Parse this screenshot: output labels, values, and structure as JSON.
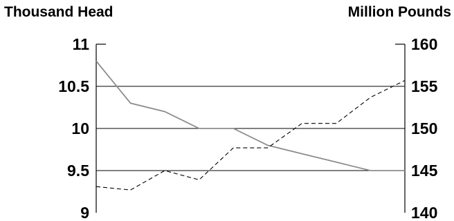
{
  "chart_data": {
    "type": "line",
    "left_axis_title": "Thousand Head",
    "right_axis_title": "Million Pounds",
    "x": [
      0,
      1,
      2,
      3,
      4,
      5,
      6,
      7,
      8,
      9
    ],
    "left_axis": {
      "range": [
        9,
        11
      ],
      "ticks": [
        9,
        9.5,
        10,
        10.5,
        11
      ],
      "tick_labels": [
        "9",
        "9.5",
        "10",
        "10.5",
        "11"
      ]
    },
    "right_axis": {
      "range": [
        140,
        160
      ],
      "ticks": [
        140,
        145,
        150,
        155,
        160
      ],
      "tick_labels": [
        "140",
        "145",
        "150",
        "155",
        "160"
      ]
    },
    "series": [
      {
        "axis": "left",
        "style": "solid",
        "color": "#8c8c8c",
        "values": [
          10.8,
          10.3,
          10.2,
          10.0,
          10.0,
          9.8,
          9.7,
          9.6,
          9.5,
          9.5
        ]
      },
      {
        "axis": "right",
        "style": "dashed",
        "color": "#000000",
        "values": [
          143.1,
          142.7,
          145.0,
          143.9,
          147.7,
          147.7,
          150.6,
          150.6,
          153.7,
          155.7
        ]
      }
    ],
    "gridlines": true,
    "legend": "none"
  }
}
